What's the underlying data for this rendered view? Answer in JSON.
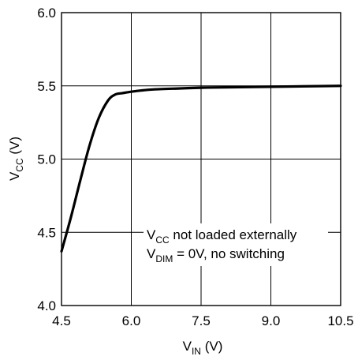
{
  "chart_data": {
    "type": "line",
    "xlabel": {
      "main": "V",
      "sub": "IN",
      "unit": " (V)"
    },
    "ylabel": {
      "main": "V",
      "sub": "CC",
      "unit": " (V)"
    },
    "xlim": [
      4.5,
      10.5
    ],
    "ylim": [
      4.0,
      6.0
    ],
    "x_ticks": [
      4.5,
      6.0,
      7.5,
      9.0,
      10.5
    ],
    "x_tick_labels": [
      "4.5",
      "6.0",
      "7.5",
      "9.0",
      "10.5"
    ],
    "y_ticks": [
      4.0,
      4.5,
      5.0,
      5.5,
      6.0
    ],
    "y_tick_labels": [
      "4.0",
      "4.5",
      "5.0",
      "5.5",
      "6.0"
    ],
    "grid": true,
    "colors": {
      "line": "#000000",
      "grid": "#000000",
      "background": "#ffffff"
    },
    "series": [
      {
        "x": [
          4.5,
          4.7,
          4.9,
          5.1,
          5.3,
          5.5,
          5.65,
          5.8,
          5.9,
          6.0,
          6.2,
          6.5,
          7.0,
          7.5,
          8.0,
          9.0,
          10.0,
          10.5
        ],
        "y": [
          4.37,
          4.6,
          4.85,
          5.09,
          5.28,
          5.4,
          5.44,
          5.45,
          5.455,
          5.46,
          5.468,
          5.476,
          5.482,
          5.487,
          5.49,
          5.494,
          5.498,
          5.5
        ]
      }
    ],
    "annotations": [
      {
        "main": "V",
        "sub": "CC",
        "rest": " not loaded externally"
      },
      {
        "main": "V",
        "sub": "DIM",
        "rest": " = 0V, no switching"
      }
    ]
  }
}
